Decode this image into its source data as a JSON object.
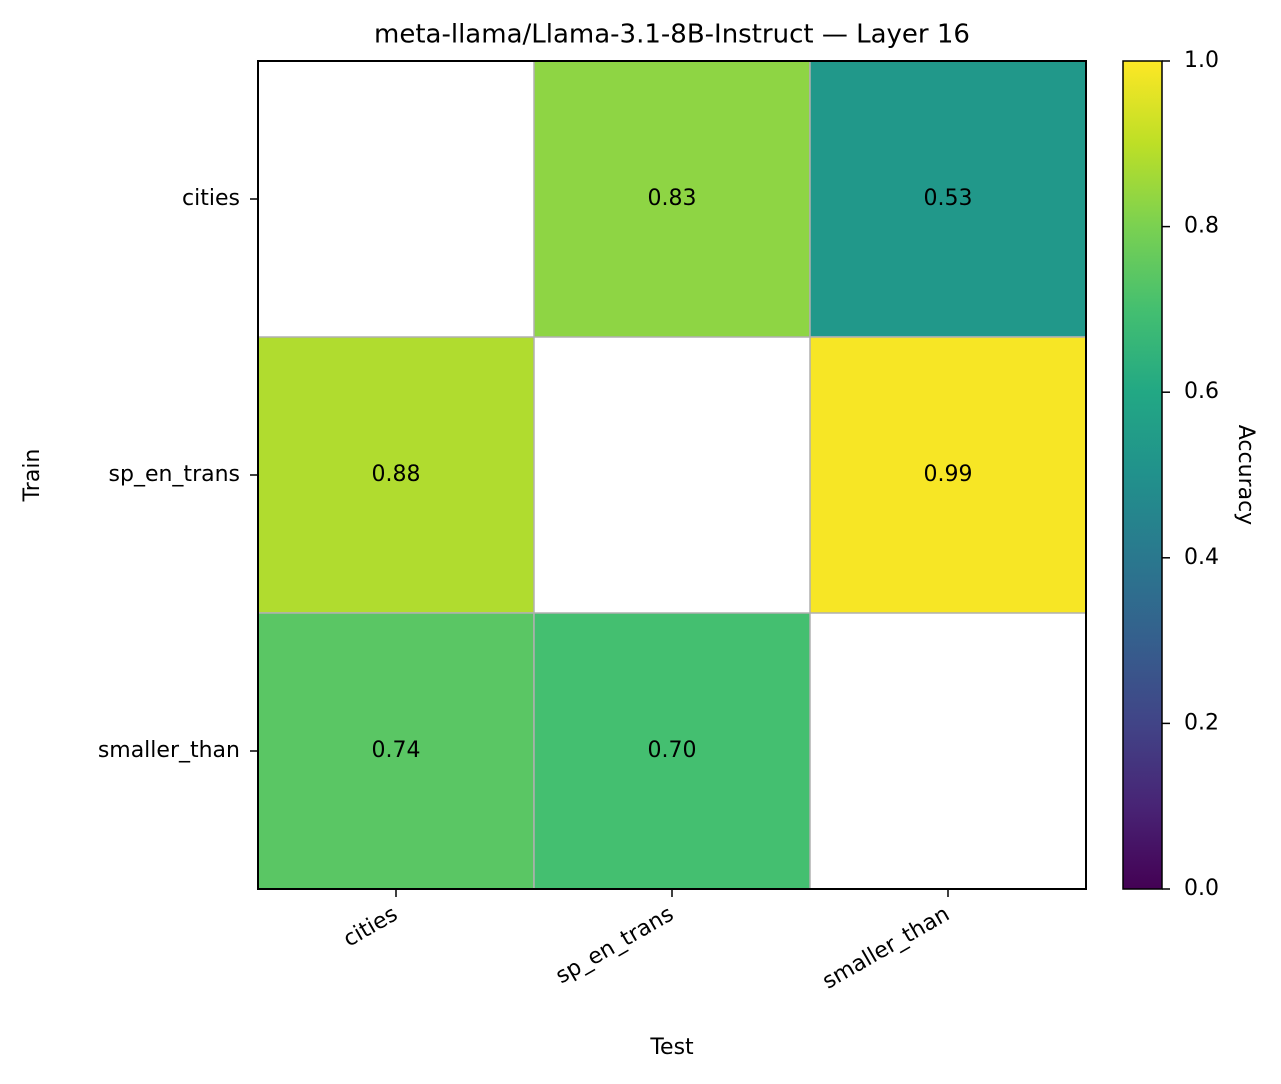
{
  "chart_data": {
    "type": "heatmap",
    "title": "meta-llama/Llama-3.1-8B-Instruct — Layer 16",
    "xlabel": "Test",
    "ylabel": "Train",
    "x_categories": [
      "cities",
      "sp_en_trans",
      "smaller_than"
    ],
    "y_categories": [
      "cities",
      "sp_en_trans",
      "smaller_than"
    ],
    "values": [
      [
        null,
        0.83,
        0.53
      ],
      [
        0.88,
        null,
        0.99
      ],
      [
        0.74,
        0.7,
        null
      ]
    ],
    "value_labels": [
      [
        null,
        "0.83",
        "0.53"
      ],
      [
        "0.88",
        null,
        "0.99"
      ],
      [
        "0.74",
        "0.70",
        null
      ]
    ],
    "colormap": "viridis",
    "colorbar_label": "Accuracy",
    "clim": [
      0,
      1
    ],
    "cticks": [
      {
        "value": 0,
        "label": "0.0"
      },
      0.2,
      0.4,
      0.6,
      0.8,
      {
        "value": 1,
        "label": "1.0"
      }
    ]
  }
}
